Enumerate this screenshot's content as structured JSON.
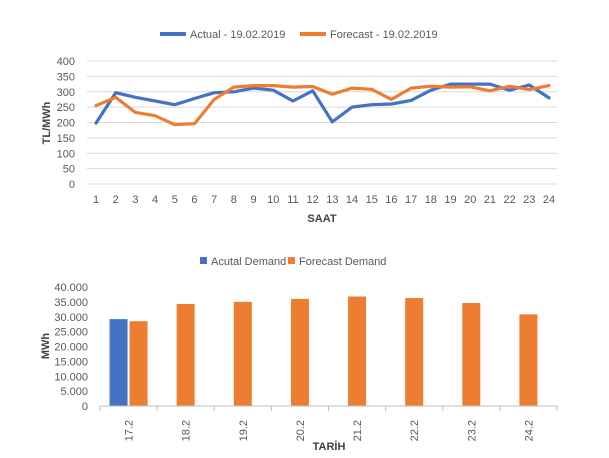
{
  "chart_data": [
    {
      "type": "line",
      "title": "",
      "xlabel": "SAAT",
      "ylabel": "TL/MWh",
      "ylim": [
        0,
        400
      ],
      "yticks": [
        "0",
        "50",
        "100",
        "150",
        "200",
        "250",
        "300",
        "350",
        "400"
      ],
      "x": [
        "1",
        "2",
        "3",
        "4",
        "5",
        "6",
        "7",
        "8",
        "9",
        "10",
        "11",
        "12",
        "13",
        "14",
        "15",
        "16",
        "17",
        "18",
        "19",
        "20",
        "21",
        "22",
        "23",
        "24"
      ],
      "grid": true,
      "legend": "top",
      "series": [
        {
          "name": "Actual - 19.02.2019",
          "color": "#4472C4",
          "values": [
            198,
            297,
            282,
            270,
            258,
            278,
            297,
            300,
            312,
            305,
            270,
            303,
            202,
            250,
            258,
            260,
            272,
            305,
            325,
            325,
            325,
            305,
            322,
            280
          ]
        },
        {
          "name": "Forecast - 19.02.2019",
          "color": "#ED7D31",
          "values": [
            255,
            282,
            233,
            222,
            193,
            196,
            275,
            315,
            320,
            320,
            315,
            317,
            292,
            312,
            308,
            275,
            312,
            318,
            315,
            316,
            303,
            318,
            307,
            320
          ]
        }
      ]
    },
    {
      "type": "bar",
      "title": "",
      "xlabel": "TARİH",
      "ylabel": "MWh",
      "ylim": [
        0,
        40000
      ],
      "yticks": [
        "0",
        "5.000",
        "10.000",
        "15.000",
        "20.000",
        "25.000",
        "30.000",
        "35.000",
        "40.000"
      ],
      "categories": [
        "17.2",
        "18.2",
        "19.2",
        "20.2",
        "21.2",
        "22.2",
        "23.2",
        "24.2"
      ],
      "grid": false,
      "legend": "top",
      "series": [
        {
          "name": "Acutal Demand",
          "color": "#4472C4",
          "values": [
            29200,
            null,
            null,
            null,
            null,
            null,
            null,
            null
          ]
        },
        {
          "name": "Forecast Demand",
          "color": "#ED7D31",
          "values": [
            28500,
            34300,
            35000,
            36000,
            36800,
            36300,
            34600,
            30800
          ]
        }
      ]
    }
  ]
}
